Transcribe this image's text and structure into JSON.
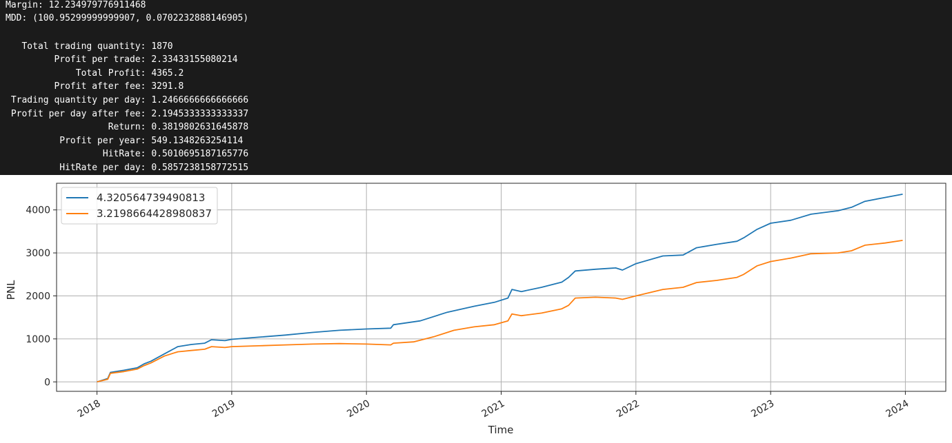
{
  "console": {
    "lines": [
      "Margin: 12.234979776911468",
      "MDD: (100.95299999999907, 0.0702232888146905)",
      "",
      "   Total trading quantity: 1870",
      "         Profit per trade: 2.33433155080214",
      "             Total Profit: 4365.2",
      "         Profit after fee: 3291.8",
      " Trading quantity per day: 1.2466666666666666",
      " Profit per day after fee: 2.1945333333333337",
      "                   Return: 0.3819802631645878",
      "          Profit per year: 549.1348263254114",
      "                  HitRate: 0.5010695187165776",
      "          HitRate per day: 0.5857238158772515"
    ]
  },
  "chart_data": {
    "type": "line",
    "xlabel": "Time",
    "ylabel": "PNL",
    "xlim": [
      2017.7,
      2024.3
    ],
    "ylim": [
      -220,
      4620
    ],
    "x_ticks": [
      "2018",
      "2019",
      "2020",
      "2021",
      "2022",
      "2023",
      "2024"
    ],
    "y_ticks": [
      "0",
      "1000",
      "2000",
      "3000",
      "4000"
    ],
    "grid": true,
    "legend_position": "top-left",
    "series": [
      {
        "name": "4.320564739490813",
        "color": "#1f77b4",
        "points": [
          [
            2018.0,
            0
          ],
          [
            2018.08,
            80
          ],
          [
            2018.1,
            220
          ],
          [
            2018.2,
            270
          ],
          [
            2018.3,
            330
          ],
          [
            2018.35,
            420
          ],
          [
            2018.4,
            480
          ],
          [
            2018.5,
            650
          ],
          [
            2018.6,
            820
          ],
          [
            2018.7,
            870
          ],
          [
            2018.8,
            900
          ],
          [
            2018.85,
            980
          ],
          [
            2018.95,
            960
          ],
          [
            2019.0,
            990
          ],
          [
            2019.2,
            1040
          ],
          [
            2019.4,
            1090
          ],
          [
            2019.6,
            1150
          ],
          [
            2019.8,
            1200
          ],
          [
            2020.0,
            1230
          ],
          [
            2020.18,
            1250
          ],
          [
            2020.2,
            1330
          ],
          [
            2020.4,
            1420
          ],
          [
            2020.6,
            1620
          ],
          [
            2020.8,
            1760
          ],
          [
            2020.95,
            1850
          ],
          [
            2021.05,
            1950
          ],
          [
            2021.08,
            2150
          ],
          [
            2021.15,
            2100
          ],
          [
            2021.3,
            2200
          ],
          [
            2021.45,
            2320
          ],
          [
            2021.5,
            2430
          ],
          [
            2021.55,
            2580
          ],
          [
            2021.7,
            2620
          ],
          [
            2021.85,
            2650
          ],
          [
            2021.9,
            2600
          ],
          [
            2022.0,
            2750
          ],
          [
            2022.2,
            2930
          ],
          [
            2022.35,
            2950
          ],
          [
            2022.45,
            3120
          ],
          [
            2022.6,
            3200
          ],
          [
            2022.75,
            3270
          ],
          [
            2022.8,
            3350
          ],
          [
            2022.9,
            3550
          ],
          [
            2023.0,
            3690
          ],
          [
            2023.15,
            3760
          ],
          [
            2023.3,
            3900
          ],
          [
            2023.5,
            3980
          ],
          [
            2023.6,
            4060
          ],
          [
            2023.7,
            4200
          ],
          [
            2023.85,
            4290
          ],
          [
            2023.98,
            4365
          ]
        ]
      },
      {
        "name": "3.2198664428980837",
        "color": "#ff7f0e",
        "points": [
          [
            2018.0,
            0
          ],
          [
            2018.08,
            60
          ],
          [
            2018.1,
            200
          ],
          [
            2018.2,
            240
          ],
          [
            2018.3,
            300
          ],
          [
            2018.35,
            380
          ],
          [
            2018.4,
            440
          ],
          [
            2018.5,
            600
          ],
          [
            2018.6,
            700
          ],
          [
            2018.7,
            730
          ],
          [
            2018.8,
            760
          ],
          [
            2018.85,
            820
          ],
          [
            2018.95,
            800
          ],
          [
            2019.0,
            820
          ],
          [
            2019.2,
            840
          ],
          [
            2019.4,
            860
          ],
          [
            2019.6,
            880
          ],
          [
            2019.8,
            890
          ],
          [
            2020.0,
            880
          ],
          [
            2020.18,
            860
          ],
          [
            2020.2,
            900
          ],
          [
            2020.35,
            930
          ],
          [
            2020.5,
            1050
          ],
          [
            2020.65,
            1200
          ],
          [
            2020.8,
            1280
          ],
          [
            2020.95,
            1330
          ],
          [
            2021.05,
            1420
          ],
          [
            2021.08,
            1580
          ],
          [
            2021.15,
            1540
          ],
          [
            2021.3,
            1600
          ],
          [
            2021.45,
            1700
          ],
          [
            2021.5,
            1780
          ],
          [
            2021.55,
            1950
          ],
          [
            2021.7,
            1970
          ],
          [
            2021.85,
            1950
          ],
          [
            2021.9,
            1920
          ],
          [
            2022.0,
            2000
          ],
          [
            2022.2,
            2150
          ],
          [
            2022.35,
            2200
          ],
          [
            2022.45,
            2310
          ],
          [
            2022.6,
            2360
          ],
          [
            2022.75,
            2430
          ],
          [
            2022.8,
            2500
          ],
          [
            2022.9,
            2700
          ],
          [
            2023.0,
            2800
          ],
          [
            2023.15,
            2880
          ],
          [
            2023.3,
            2980
          ],
          [
            2023.5,
            3000
          ],
          [
            2023.6,
            3050
          ],
          [
            2023.7,
            3180
          ],
          [
            2023.85,
            3230
          ],
          [
            2023.98,
            3292
          ]
        ]
      }
    ]
  }
}
